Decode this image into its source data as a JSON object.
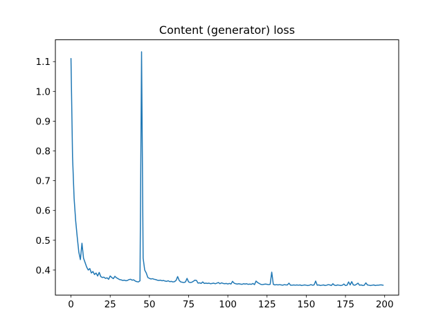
{
  "chart_data": {
    "type": "line",
    "title": "Content (generator) loss",
    "xlabel": "",
    "ylabel": "",
    "xlim": [
      -9.95,
      208.95
    ],
    "ylim": [
      0.3159,
      1.1733
    ],
    "grid": false,
    "legend": "none",
    "x_ticks": [
      0,
      25,
      50,
      75,
      100,
      125,
      150,
      175,
      200
    ],
    "y_ticks": [
      0.4,
      0.5,
      0.6,
      0.7,
      0.8,
      0.9,
      1.0,
      1.1
    ],
    "y_tick_labels": [
      "0.4",
      "0.5",
      "0.6",
      "0.7",
      "0.8",
      "0.9",
      "1.0",
      "1.1"
    ],
    "series": [
      {
        "color": "#1f77b4",
        "x_start": 0,
        "x_step": 1,
        "values": [
          1.11,
          0.78,
          0.64,
          0.565,
          0.51,
          0.46,
          0.435,
          0.49,
          0.44,
          0.425,
          0.41,
          0.4,
          0.405,
          0.39,
          0.395,
          0.385,
          0.39,
          0.38,
          0.392,
          0.378,
          0.375,
          0.376,
          0.372,
          0.374,
          0.369,
          0.38,
          0.375,
          0.371,
          0.379,
          0.374,
          0.371,
          0.368,
          0.367,
          0.365,
          0.366,
          0.364,
          0.365,
          0.368,
          0.369,
          0.366,
          0.367,
          0.363,
          0.361,
          0.36,
          0.364,
          1.133,
          0.44,
          0.4,
          0.39,
          0.375,
          0.372,
          0.37,
          0.371,
          0.369,
          0.368,
          0.366,
          0.365,
          0.366,
          0.364,
          0.365,
          0.363,
          0.362,
          0.364,
          0.361,
          0.362,
          0.36,
          0.361,
          0.365,
          0.378,
          0.365,
          0.36,
          0.359,
          0.358,
          0.36,
          0.372,
          0.36,
          0.358,
          0.359,
          0.362,
          0.366,
          0.365,
          0.356,
          0.357,
          0.355,
          0.36,
          0.355,
          0.356,
          0.355,
          0.356,
          0.354,
          0.355,
          0.356,
          0.354,
          0.356,
          0.358,
          0.354,
          0.357,
          0.355,
          0.354,
          0.355,
          0.353,
          0.355,
          0.353,
          0.362,
          0.356,
          0.354,
          0.353,
          0.354,
          0.353,
          0.352,
          0.354,
          0.353,
          0.354,
          0.352,
          0.353,
          0.352,
          0.355,
          0.351,
          0.363,
          0.358,
          0.355,
          0.352,
          0.351,
          0.352,
          0.353,
          0.352,
          0.351,
          0.352,
          0.393,
          0.352,
          0.35,
          0.351,
          0.35,
          0.351,
          0.35,
          0.349,
          0.351,
          0.35,
          0.35,
          0.356,
          0.349,
          0.349,
          0.35,
          0.349,
          0.35,
          0.349,
          0.35,
          0.348,
          0.349,
          0.35,
          0.349,
          0.348,
          0.349,
          0.351,
          0.349,
          0.35,
          0.363,
          0.349,
          0.35,
          0.348,
          0.349,
          0.35,
          0.348,
          0.349,
          0.351,
          0.35,
          0.348,
          0.354,
          0.349,
          0.348,
          0.35,
          0.349,
          0.348,
          0.349,
          0.353,
          0.348,
          0.349,
          0.36,
          0.35,
          0.361,
          0.35,
          0.349,
          0.352,
          0.356,
          0.349,
          0.35,
          0.348,
          0.349,
          0.357,
          0.35,
          0.349,
          0.348,
          0.349,
          0.35,
          0.348,
          0.349,
          0.349,
          0.35,
          0.35,
          0.349
        ]
      }
    ]
  }
}
